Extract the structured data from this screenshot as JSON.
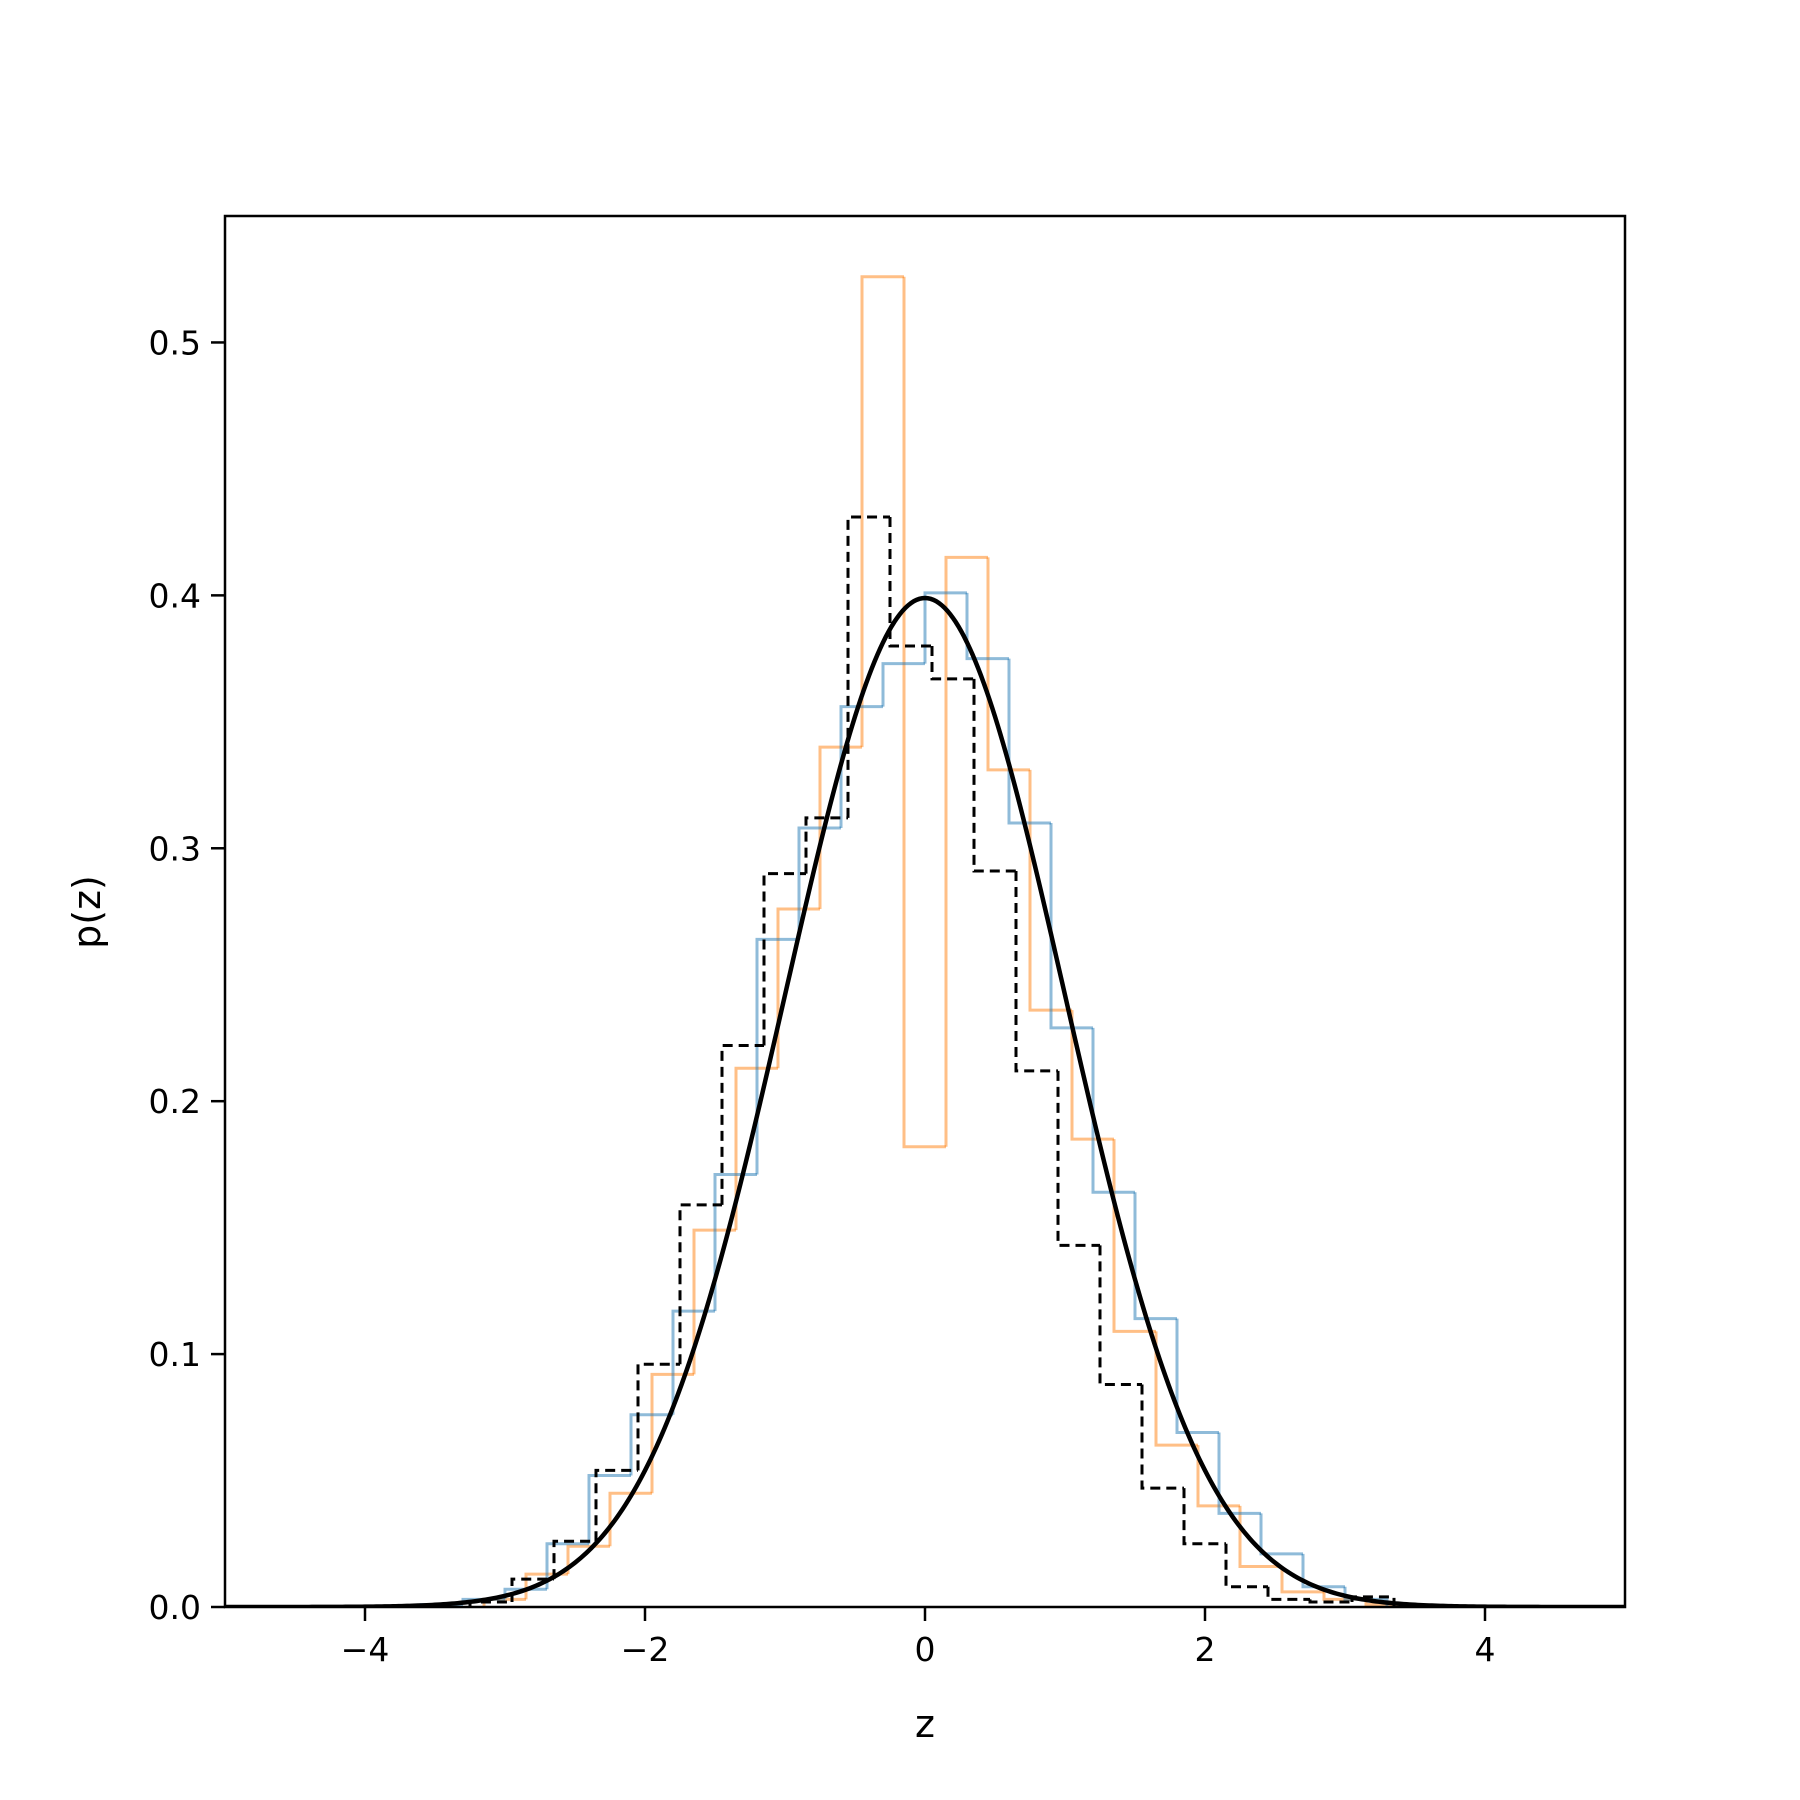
{
  "chart_data": {
    "type": "histogram",
    "title": "",
    "xlabel": "z",
    "ylabel": "p(z)",
    "xlim": [
      -5,
      5
    ],
    "ylim": [
      0,
      0.55
    ],
    "xticks": [
      -4,
      -2,
      0,
      2,
      4
    ],
    "xtick_labels": [
      "−4",
      "−2",
      "0",
      "2",
      "4"
    ],
    "yticks": [
      0.0,
      0.1,
      0.2,
      0.3,
      0.4,
      0.5
    ],
    "ytick_labels": [
      "0.0",
      "0.1",
      "0.2",
      "0.3",
      "0.4",
      "0.5"
    ],
    "grid": false,
    "legend": "none",
    "series": [
      {
        "kind": "step",
        "color": "#ff7f0e",
        "opacity": 0.5,
        "dashed": false,
        "edges": [
          -3.15,
          -2.85,
          -2.55,
          -2.25,
          -1.95,
          -1.65,
          -1.35,
          -1.05,
          -0.75,
          -0.45,
          -0.15,
          0.15,
          0.45,
          0.75,
          1.05,
          1.35,
          1.65,
          1.95,
          2.25,
          2.55,
          2.85,
          3.15,
          3.45
        ],
        "values": [
          0.003,
          0.013,
          0.024,
          0.045,
          0.092,
          0.149,
          0.213,
          0.276,
          0.34,
          0.526,
          0.182,
          0.415,
          0.331,
          0.236,
          0.185,
          0.109,
          0.064,
          0.04,
          0.016,
          0.006,
          0.003,
          0.001
        ]
      },
      {
        "kind": "step",
        "color": "#1f77b4",
        "opacity": 0.5,
        "dashed": false,
        "edges": [
          -3.6,
          -3.3,
          -3.0,
          -2.7,
          -2.4,
          -2.1,
          -1.8,
          -1.5,
          -1.2,
          -0.9,
          -0.6,
          -0.3,
          0.0,
          0.3,
          0.6,
          0.9,
          1.2,
          1.5,
          1.8,
          2.1,
          2.4,
          2.7,
          3.0,
          3.3
        ],
        "values": [
          0.001,
          0.003,
          0.007,
          0.025,
          0.052,
          0.076,
          0.117,
          0.171,
          0.264,
          0.308,
          0.356,
          0.373,
          0.401,
          0.375,
          0.31,
          0.229,
          0.164,
          0.114,
          0.069,
          0.037,
          0.021,
          0.008,
          0.003
        ]
      },
      {
        "kind": "step",
        "color": "#000000",
        "opacity": 1,
        "dashed": true,
        "edges": [
          -3.25,
          -2.95,
          -2.65,
          -2.35,
          -2.05,
          -1.75,
          -1.45,
          -1.15,
          -0.85,
          -0.55,
          -0.25,
          0.05,
          0.35,
          0.65,
          0.95,
          1.25,
          1.55,
          1.85,
          2.15,
          2.45,
          2.75,
          3.05,
          3.35
        ],
        "values": [
          0.002,
          0.011,
          0.026,
          0.054,
          0.096,
          0.159,
          0.222,
          0.29,
          0.312,
          0.431,
          0.38,
          0.367,
          0.291,
          0.212,
          0.143,
          0.088,
          0.047,
          0.025,
          0.008,
          0.003,
          0.002,
          0.004
        ]
      },
      {
        "kind": "curve",
        "name": "",
        "function": "standard normal pdf",
        "color": "#000000",
        "mean": 0,
        "std": 1
      }
    ]
  }
}
